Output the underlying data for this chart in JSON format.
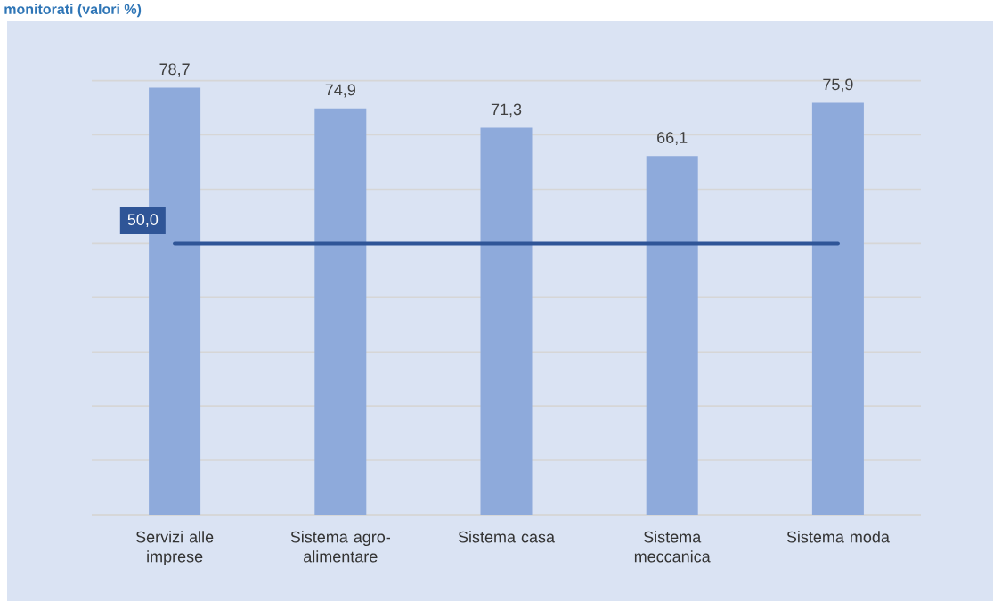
{
  "chart_data": {
    "type": "bar",
    "title": "monitorati (valori %)",
    "categories": [
      "Servizi alle imprese",
      "Sistema agro-alimentare",
      "Sistema casa",
      "Sistema meccanica",
      "Sistema moda"
    ],
    "values": [
      78.7,
      74.9,
      71.3,
      66.1,
      75.9
    ],
    "value_labels": [
      "78,7",
      "74,9",
      "71,3",
      "66,1",
      "75,9"
    ],
    "color": "#8eaadb",
    "tick_labels": "x",
    "grid": "y",
    "ref_lines": [
      {
        "axis": "y",
        "value": 50,
        "label": "50,0",
        "color": "#2f5597"
      }
    ]
  }
}
